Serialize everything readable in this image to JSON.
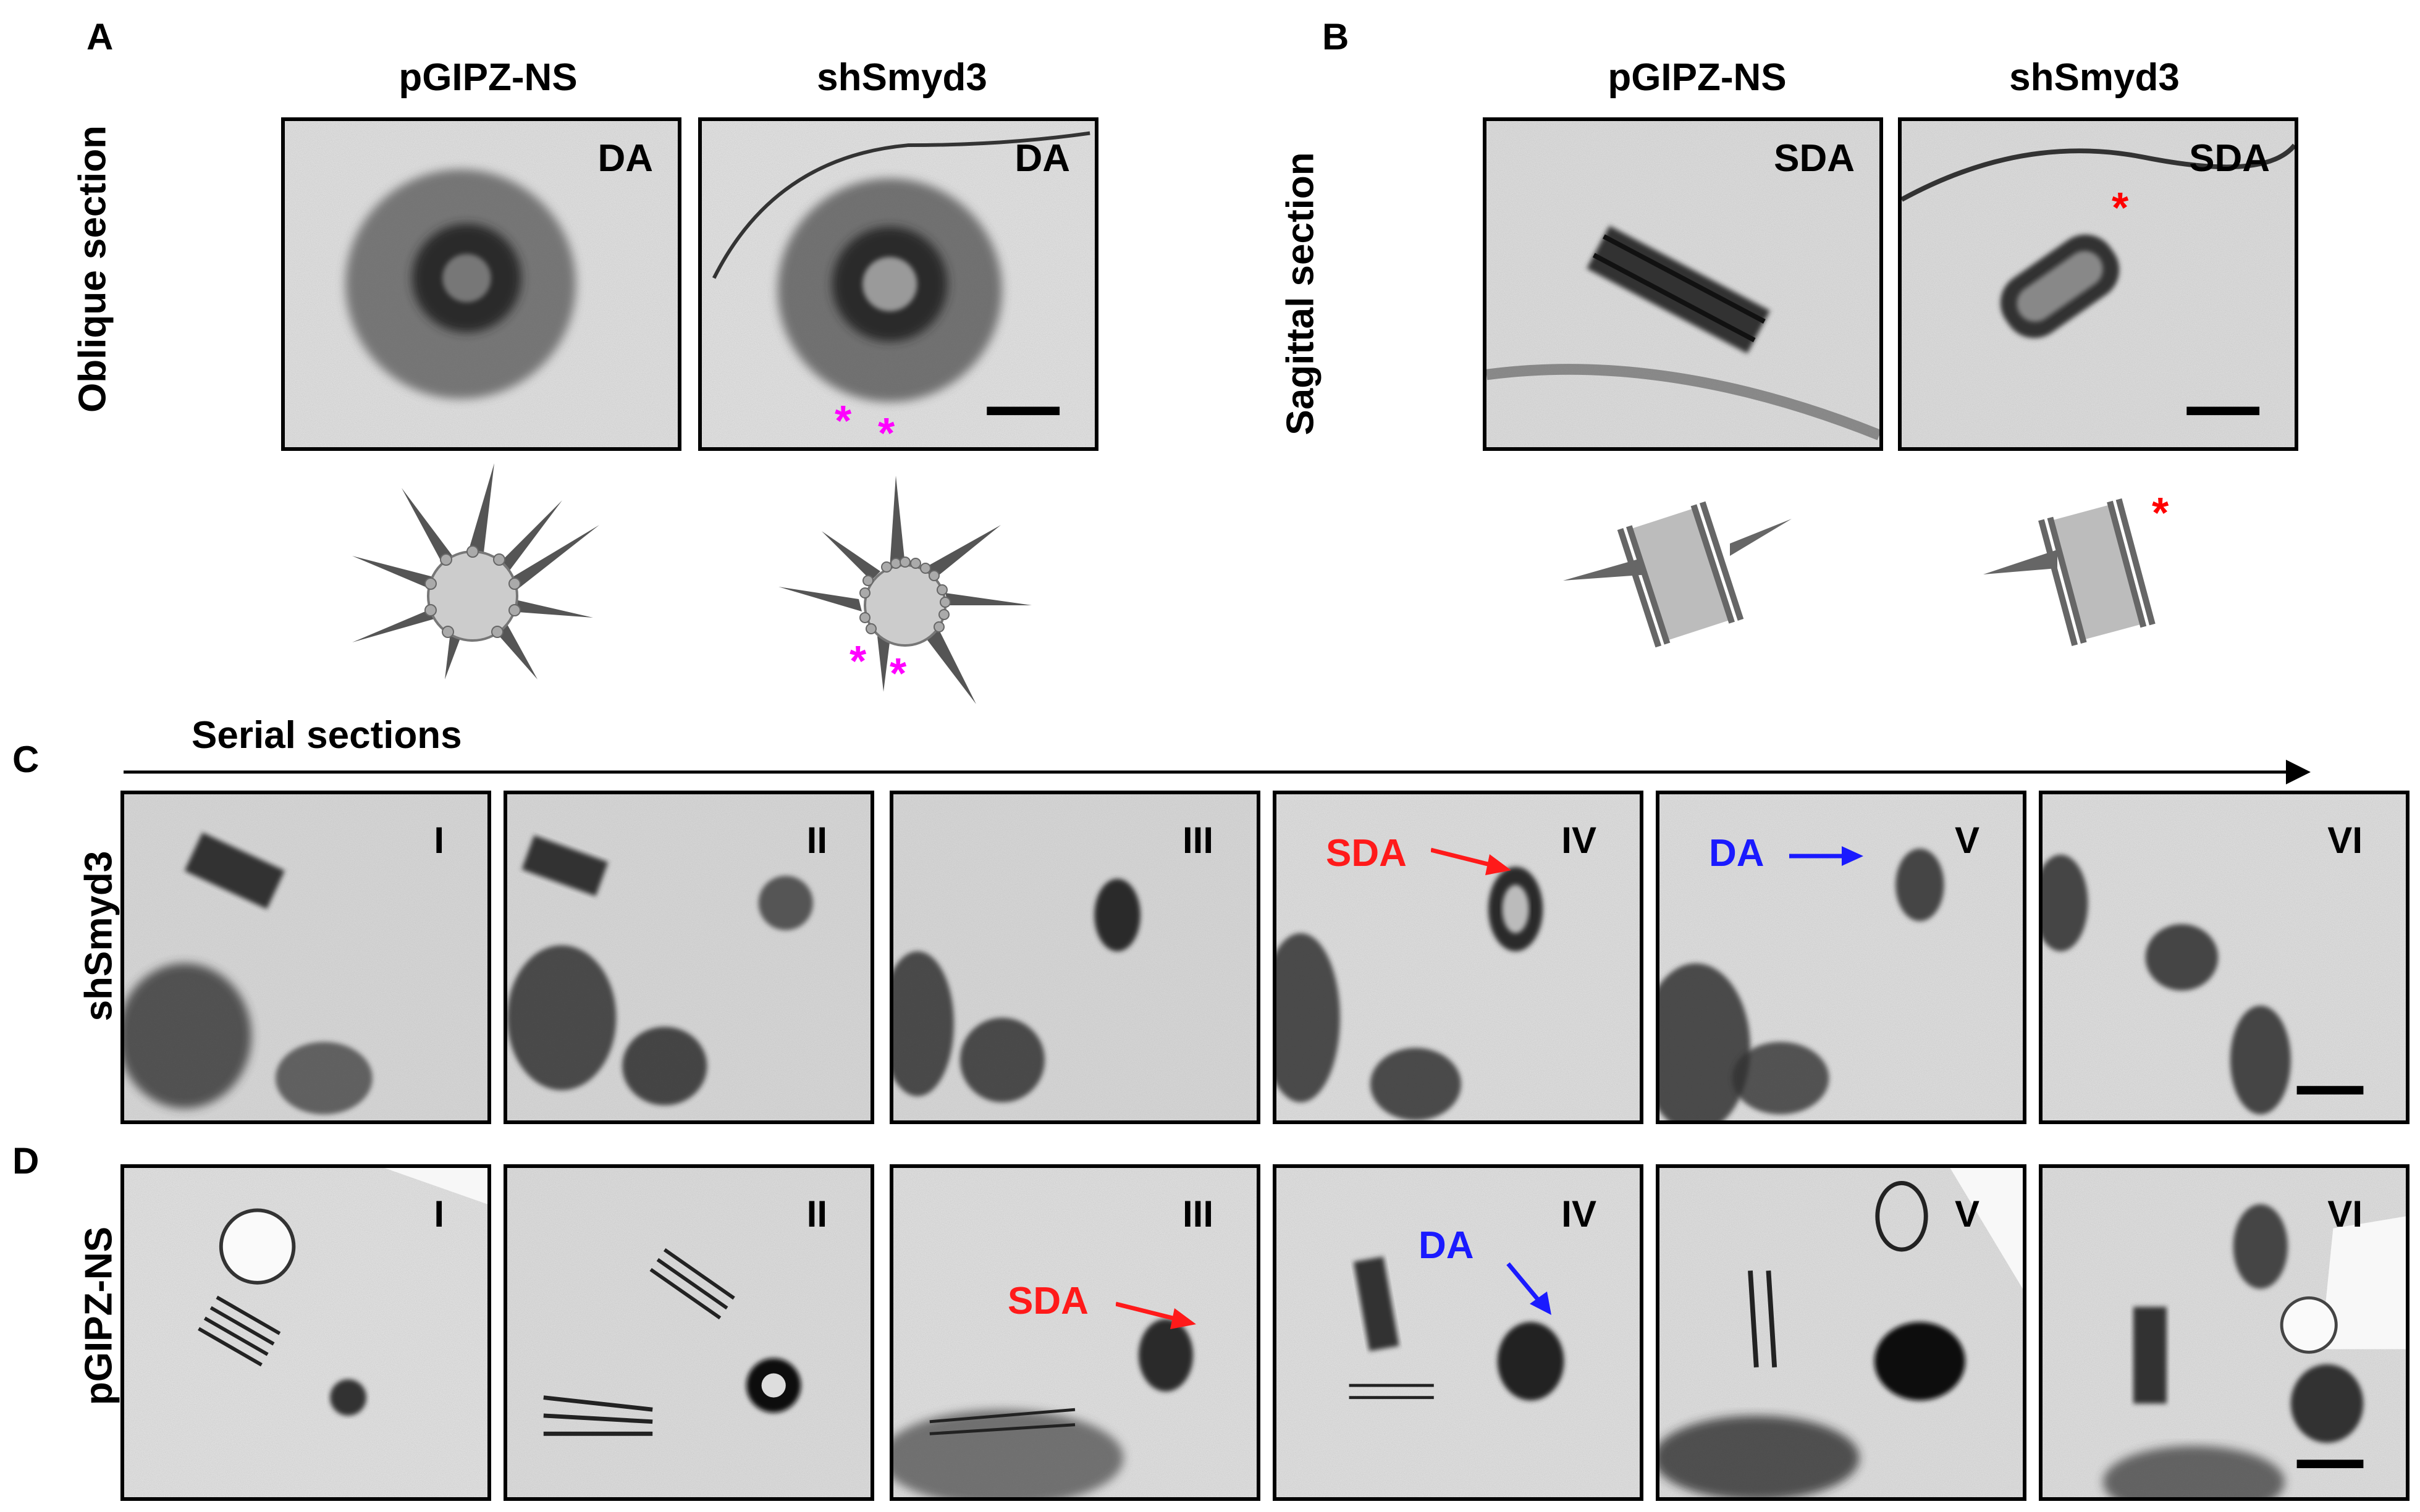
{
  "panels": {
    "A": {
      "letter": "A",
      "row_label": "Oblique section",
      "columns": [
        "pGIPZ-NS",
        "shSmyd3"
      ],
      "inset_label": "DA",
      "marker": "*"
    },
    "B": {
      "letter": "B",
      "row_label": "Sagittal section",
      "columns": [
        "pGIPZ-NS",
        "shSmyd3"
      ],
      "inset_label": "SDA",
      "marker": "*"
    },
    "C": {
      "letter": "C",
      "row_label": "shSmyd3",
      "series_label": "Serial sections",
      "sections": [
        "I",
        "II",
        "III",
        "IV",
        "V",
        "VI"
      ],
      "arrow_labels": {
        "sda": "SDA",
        "da": "DA"
      }
    },
    "D": {
      "letter": "D",
      "row_label": "pGIPZ-NS",
      "sections": [
        "I",
        "II",
        "III",
        "IV",
        "V",
        "VI"
      ],
      "arrow_labels": {
        "sda": "SDA",
        "da": "DA"
      }
    }
  },
  "colors": {
    "sda": "#ff1a1a",
    "da": "#1a1aff",
    "magenta_marker": "#ff00ff",
    "red_marker": "#ff0000",
    "schematic_dark": "#555555",
    "schematic_light": "#cccccc"
  }
}
